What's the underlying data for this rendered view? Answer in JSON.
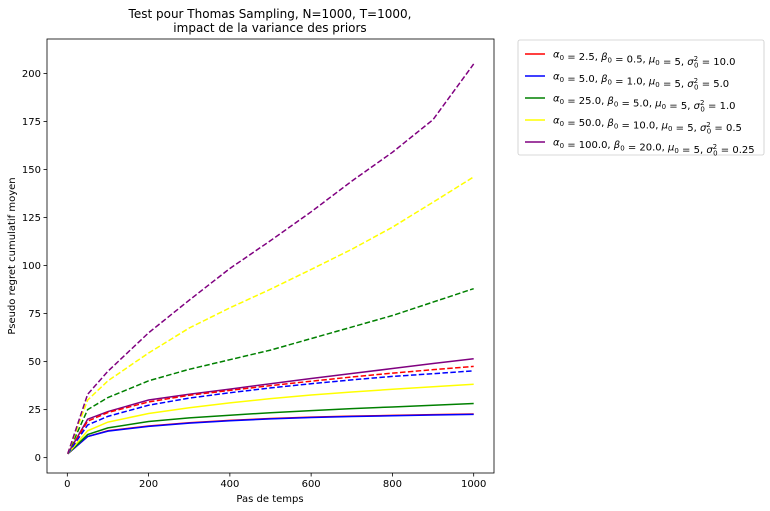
{
  "chart_data": {
    "type": "line",
    "title_line1": "Test pour Thomas Sampling, N=1000, T=1000,",
    "title_line2": "impact de la variance des priors",
    "xlabel": "Pas de temps",
    "ylabel": "Pseudo regret cumulatif moyen",
    "xlim": [
      -50,
      1050
    ],
    "ylim": [
      -8,
      218
    ],
    "xticks": [
      0,
      200,
      400,
      600,
      800,
      1000
    ],
    "yticks": [
      0,
      25,
      50,
      75,
      100,
      125,
      150,
      175,
      200
    ],
    "grid": false,
    "legend_position": "outside-right",
    "x": [
      1,
      50,
      100,
      200,
      300,
      400,
      500,
      600,
      700,
      800,
      900,
      1000
    ],
    "series": [
      {
        "legend_index": 0,
        "style": "solid",
        "color": "#ff0000",
        "values": [
          2,
          11,
          14,
          16.5,
          18.2,
          19.4,
          20.4,
          21.1,
          21.6,
          22,
          22.4,
          22.7
        ]
      },
      {
        "legend_index": 1,
        "style": "solid",
        "color": "#0000ff",
        "values": [
          2,
          11,
          13.8,
          16.3,
          18,
          19.2,
          20.2,
          20.9,
          21.4,
          21.8,
          22.2,
          22.5
        ]
      },
      {
        "legend_index": 2,
        "style": "solid",
        "color": "#008000",
        "values": [
          2,
          12,
          15.5,
          18.8,
          20.7,
          22.1,
          23.4,
          24.5,
          25.5,
          26.4,
          27.3,
          28.2
        ]
      },
      {
        "legend_index": 3,
        "style": "solid",
        "color": "#ffff00",
        "values": [
          2,
          14,
          18.5,
          23,
          26,
          28.5,
          30.7,
          32.6,
          34.2,
          35.6,
          36.9,
          38.2
        ]
      },
      {
        "legend_index": 4,
        "style": "solid",
        "color": "#800080",
        "values": [
          2,
          20,
          24,
          30,
          33,
          35.7,
          38.5,
          41.2,
          43.8,
          46.4,
          49,
          51.5
        ]
      },
      {
        "legend_index": 0,
        "style": "dashed",
        "color": "#ff0000",
        "values": [
          2,
          19,
          23.5,
          29,
          32.5,
          35,
          37.5,
          39.8,
          42,
          44,
          45.8,
          47.5
        ]
      },
      {
        "legend_index": 1,
        "style": "dashed",
        "color": "#0000ff",
        "values": [
          2,
          17,
          21.5,
          27.3,
          31,
          33.8,
          36.3,
          38.5,
          40.5,
          42.3,
          43.7,
          45.2
        ]
      },
      {
        "legend_index": 2,
        "style": "dashed",
        "color": "#008000",
        "values": [
          2,
          25,
          31.3,
          40,
          46,
          51,
          56,
          62,
          68,
          74,
          81,
          88
        ]
      },
      {
        "legend_index": 3,
        "style": "dashed",
        "color": "#ffff00",
        "values": [
          2,
          30,
          40,
          54.5,
          67.5,
          78,
          87.7,
          98,
          108.5,
          120,
          133,
          146.2
        ]
      },
      {
        "legend_index": 4,
        "style": "dashed",
        "color": "#800080",
        "values": [
          2,
          33,
          45,
          65,
          82,
          98.5,
          113,
          128,
          144,
          159,
          176,
          205
        ]
      }
    ],
    "legend": [
      {
        "color": "#ff0000",
        "alpha": "2.5",
        "beta": "0.5",
        "mu": "5",
        "sigma2": "10.0"
      },
      {
        "color": "#0000ff",
        "alpha": "5.0",
        "beta": "1.0",
        "mu": "5",
        "sigma2": "5.0"
      },
      {
        "color": "#008000",
        "alpha": "25.0",
        "beta": "5.0",
        "mu": "5",
        "sigma2": "1.0"
      },
      {
        "color": "#ffff00",
        "alpha": "50.0",
        "beta": "10.0",
        "mu": "5",
        "sigma2": "0.5"
      },
      {
        "color": "#800080",
        "alpha": "100.0",
        "beta": "20.0",
        "mu": "5",
        "sigma2": "0.25"
      }
    ]
  }
}
